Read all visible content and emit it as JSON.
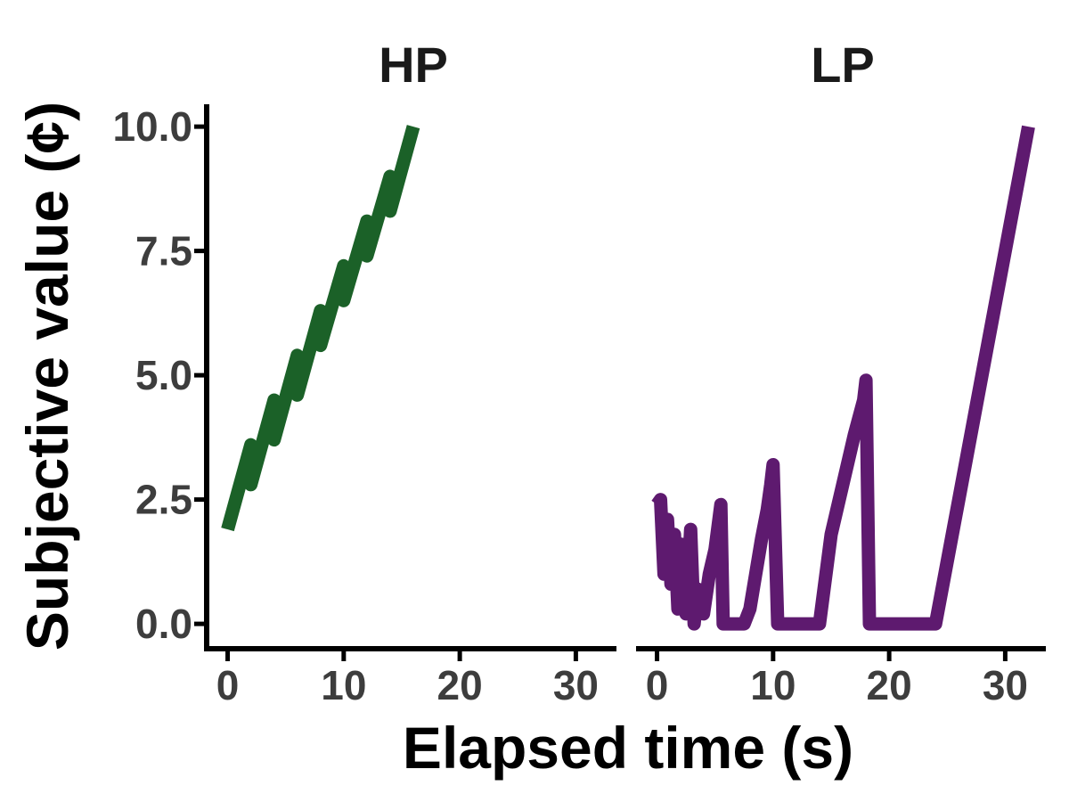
{
  "chart_data": {
    "type": "line",
    "xlabel": "Elapsed time (s)",
    "ylabel": "Subjective value (¢)",
    "xlim": [
      -1.5,
      33.5
    ],
    "ylim": [
      -0.5,
      10.45
    ],
    "xticks": [
      0,
      10,
      20,
      30
    ],
    "xtick_labels": [
      "0",
      "10",
      "20",
      "30"
    ],
    "yticks": [
      0,
      2.5,
      5,
      7.5,
      10
    ],
    "ytick_labels": [
      "0.0",
      "2.5",
      "5.0",
      "7.5",
      "10.0"
    ],
    "panels": [
      {
        "title": "HP",
        "color": "#1b6128",
        "series": {
          "name": "HP",
          "x": [
            0,
            2,
            2,
            4,
            4,
            6,
            6,
            8,
            8,
            10,
            10,
            12,
            12,
            14,
            14,
            16
          ],
          "y": [
            1.9,
            3.6,
            2.8,
            4.5,
            3.7,
            5.4,
            4.6,
            6.3,
            5.6,
            7.2,
            6.5,
            8.1,
            7.4,
            9.0,
            8.3,
            10.0
          ]
        }
      },
      {
        "title": "LP",
        "color": "#5e1a6f",
        "series": {
          "name": "LP",
          "x": [
            0,
            0.3,
            0.6,
            0.9,
            1.2,
            1.5,
            1.8,
            2.1,
            2.5,
            2.9,
            3.2,
            3.5,
            4.0,
            4.5,
            5.0,
            5.5,
            5.7,
            6.2,
            7.5,
            8.0,
            8.5,
            9.0,
            9.5,
            9.8,
            10.0,
            10.4,
            13.5,
            14.0,
            15.0,
            16.0,
            17.0,
            17.8,
            18.0,
            18.3,
            23.5,
            24.0,
            26.0,
            28.0,
            30.0,
            32.0
          ],
          "y": [
            2.4,
            2.5,
            1.0,
            2.1,
            0.8,
            1.8,
            0.3,
            1.6,
            0.2,
            1.9,
            0.0,
            0.7,
            0.2,
            1.0,
            1.5,
            2.4,
            0.0,
            0.0,
            0.0,
            0.3,
            1.0,
            1.7,
            2.3,
            2.8,
            3.2,
            0.0,
            0.0,
            0.0,
            1.8,
            2.8,
            3.8,
            4.5,
            4.9,
            0.0,
            0.0,
            0.0,
            2.5,
            5.0,
            7.5,
            10.0
          ]
        }
      }
    ]
  }
}
